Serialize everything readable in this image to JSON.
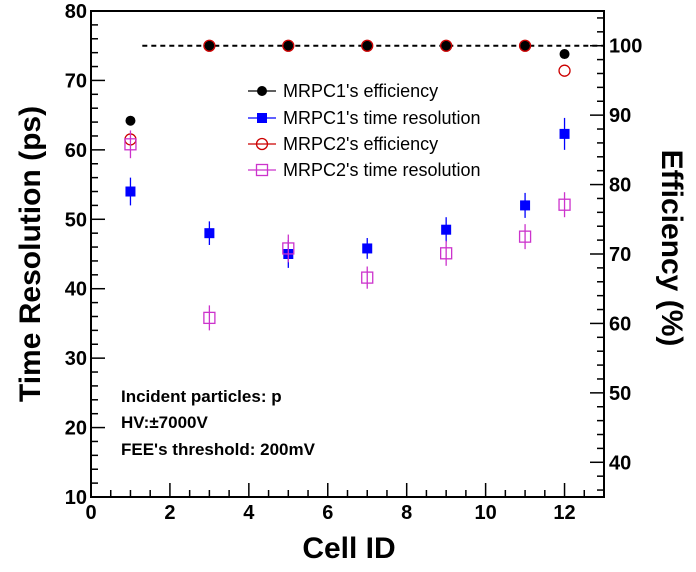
{
  "chart_data": {
    "type": "scatter",
    "x_axis": {
      "label": "Cell ID",
      "range": [
        0,
        13
      ],
      "ticks": [
        0,
        2,
        4,
        6,
        8,
        10,
        12
      ]
    },
    "y_axis_left": {
      "label": "Time Resolution (ps)",
      "range": [
        10,
        80
      ],
      "ticks": [
        10,
        20,
        30,
        40,
        50,
        60,
        70,
        80
      ]
    },
    "y_axis_right": {
      "label": "Efficiency (%)",
      "range": [
        35,
        105
      ],
      "ticks": [
        40,
        50,
        60,
        70,
        80,
        90,
        100
      ]
    },
    "reference_line": {
      "axis": "right",
      "value": 100,
      "style": "dashed"
    },
    "legend": [
      {
        "label": "MRPC1's efficiency",
        "series": "mrpc1_eff"
      },
      {
        "label": "MRPC1's time resolution",
        "series": "mrpc1_tr"
      },
      {
        "label": "MRPC2's efficiency",
        "series": "mrpc2_eff"
      },
      {
        "label": "MRPC2's time resolution",
        "series": "mrpc2_tr"
      }
    ],
    "series": [
      {
        "id": "mrpc1_eff",
        "name": "MRPC1's efficiency",
        "axis": "right",
        "marker": "filled-circle",
        "color": "#000000",
        "x": [
          1,
          3,
          5,
          7,
          9,
          11,
          12
        ],
        "y": [
          89.2,
          100.0,
          100.0,
          100.0,
          100.0,
          100.0,
          98.8
        ],
        "err": [
          0,
          0,
          0,
          0,
          0,
          0,
          0
        ]
      },
      {
        "id": "mrpc1_tr",
        "name": "MRPC1's time resolution",
        "axis": "left",
        "marker": "filled-square",
        "color": "#0000ff",
        "x": [
          1,
          3,
          5,
          7,
          9,
          11,
          12
        ],
        "y": [
          54.0,
          48.0,
          45.0,
          45.8,
          48.5,
          52.0,
          62.3
        ],
        "err": [
          2.0,
          1.7,
          2.0,
          1.5,
          1.8,
          1.8,
          2.3
        ]
      },
      {
        "id": "mrpc2_eff",
        "name": "MRPC2's efficiency",
        "axis": "right",
        "marker": "open-circle",
        "color": "#cc0000",
        "x": [
          1,
          3,
          5,
          7,
          9,
          11,
          12
        ],
        "y": [
          86.5,
          100.0,
          100.0,
          100.0,
          100.0,
          100.0,
          96.4
        ],
        "err": [
          0,
          0,
          0,
          0,
          0,
          0,
          0
        ]
      },
      {
        "id": "mrpc2_tr",
        "name": "MRPC2's time resolution",
        "axis": "left",
        "marker": "open-square",
        "color": "#cc33cc",
        "x": [
          1,
          3,
          5,
          7,
          9,
          11,
          12
        ],
        "y": [
          60.8,
          35.8,
          45.8,
          41.6,
          45.1,
          47.5,
          52.1
        ],
        "err": [
          2.0,
          1.8,
          2.0,
          1.6,
          1.8,
          1.8,
          1.8
        ]
      }
    ],
    "annotations": [
      "Incident particles: p",
      "HV:±7000V",
      "FEE's threshold: 200mV"
    ]
  }
}
